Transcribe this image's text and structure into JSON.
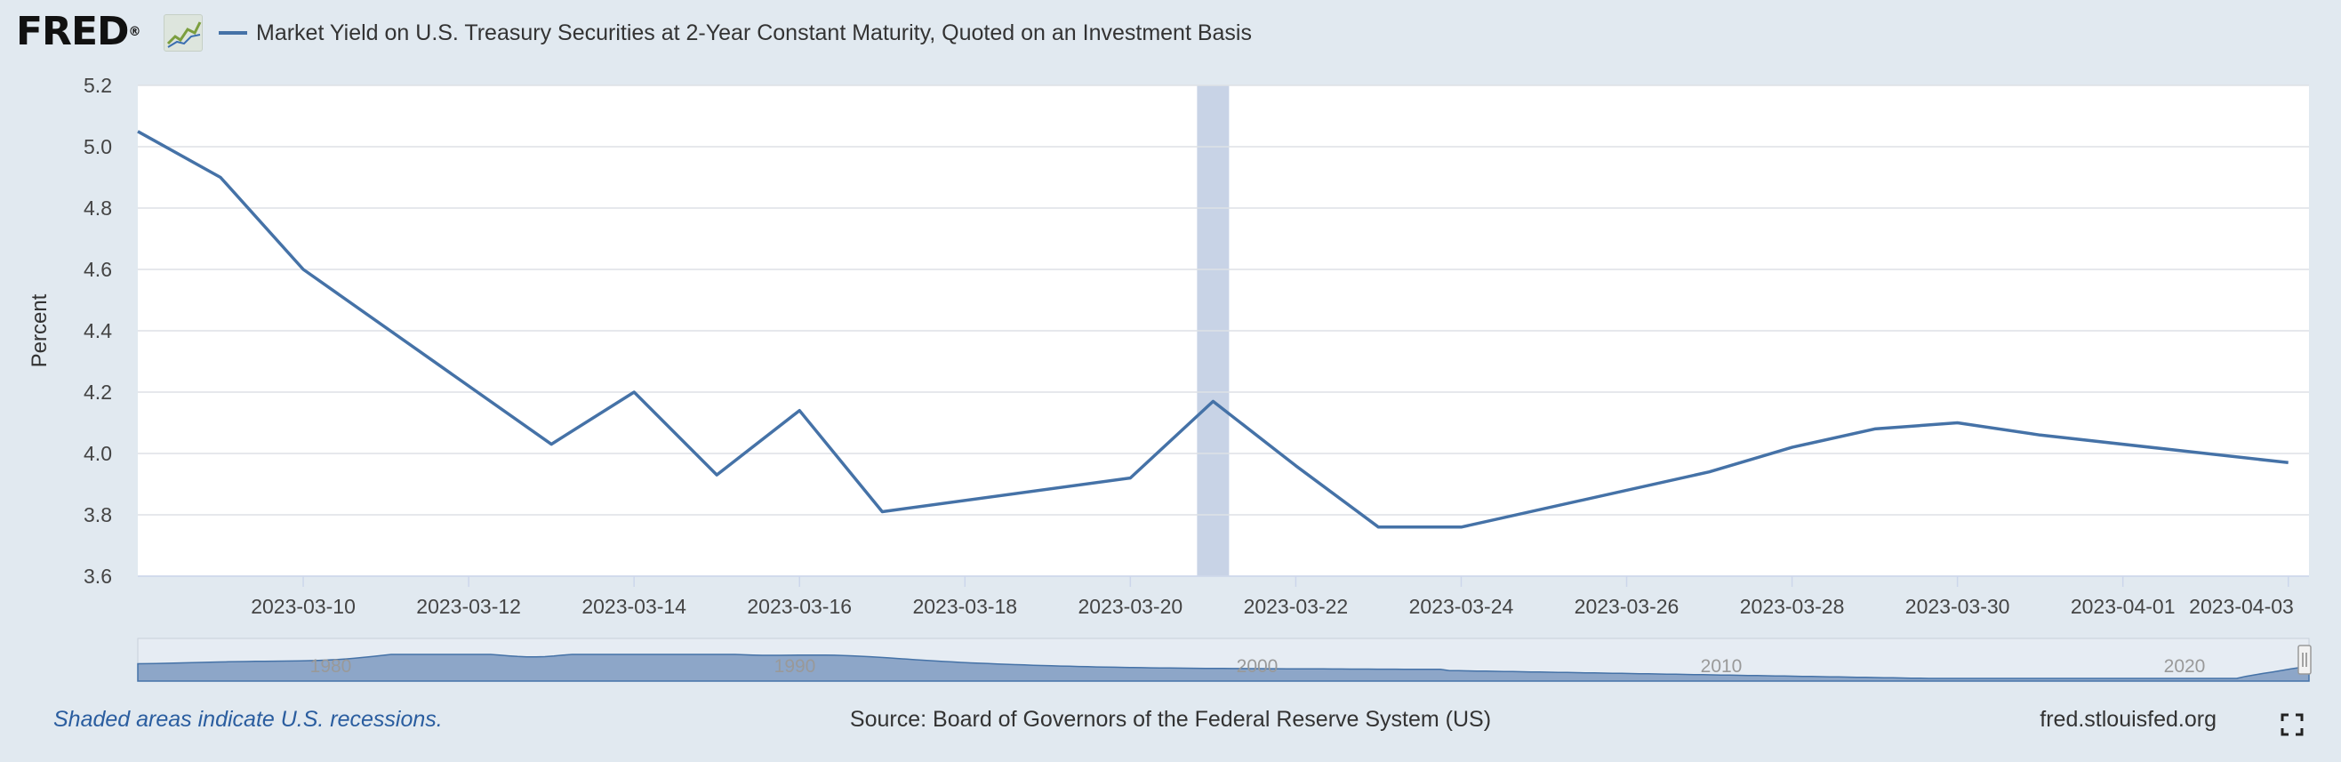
{
  "header": {
    "logo_text": "FRED",
    "logo_mark": "®",
    "logo_icon": "chart-line-icon"
  },
  "chart_data": {
    "type": "line",
    "title": "",
    "ylabel": "Percent",
    "xlabel": "",
    "ylim": [
      3.6,
      5.2
    ],
    "yticks": [
      "3.6",
      "3.8",
      "4.0",
      "4.2",
      "4.4",
      "4.6",
      "4.8",
      "5.0",
      "5.2"
    ],
    "xlim": [
      "2023-03-08",
      "2023-04-03"
    ],
    "xticks": [
      "2023-03-10",
      "2023-03-12",
      "2023-03-14",
      "2023-03-16",
      "2023-03-18",
      "2023-03-20",
      "2023-03-22",
      "2023-03-24",
      "2023-03-26",
      "2023-03-28",
      "2023-03-30",
      "2023-04-01",
      "2023-04-03"
    ],
    "grid": true,
    "legend": "top-left",
    "series": [
      {
        "name": "Market Yield on U.S. Treasury Securities at 2-Year Constant Maturity, Quoted on an Investment Basis",
        "color": "#4572a7",
        "x": [
          "2023-03-08",
          "2023-03-09",
          "2023-03-10",
          "2023-03-13",
          "2023-03-14",
          "2023-03-15",
          "2023-03-16",
          "2023-03-17",
          "2023-03-20",
          "2023-03-21",
          "2023-03-22",
          "2023-03-23",
          "2023-03-24",
          "2023-03-27",
          "2023-03-28",
          "2023-03-29",
          "2023-03-30",
          "2023-03-31",
          "2023-04-03"
        ],
        "y": [
          5.05,
          4.9,
          4.6,
          4.03,
          4.2,
          3.93,
          4.14,
          3.81,
          3.92,
          4.17,
          3.96,
          3.76,
          3.76,
          3.94,
          4.02,
          4.08,
          4.1,
          4.06,
          3.97
        ]
      }
    ],
    "recession_bands": [
      [
        "2023-03-21",
        "2023-03-21"
      ]
    ],
    "recession_color": "#c8d3e6",
    "navigator": {
      "labels": [
        "1980",
        "1990",
        "2000",
        "2010",
        "2020"
      ],
      "fill_color": "#8da6c8"
    }
  },
  "footer": {
    "note": "Shaded areas indicate U.S. recessions.",
    "source": "Source: Board of Governors of the Federal Reserve System (US)",
    "site": "fred.stlouisfed.org",
    "fullscreen_icon": "fullscreen-icon"
  }
}
